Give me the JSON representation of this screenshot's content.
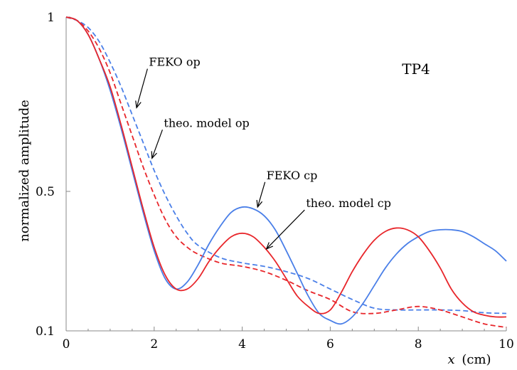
{
  "chart_data": {
    "type": "line",
    "title": "TP4",
    "xlabel_var": "x",
    "xlabel_unit": "(cm)",
    "ylabel": "normalized amplitude",
    "xlim": [
      0,
      10
    ],
    "ylim": [
      0.1,
      1
    ],
    "x_ticks": [
      0,
      2,
      4,
      6,
      8,
      10
    ],
    "x_tick_labels": [
      "0",
      "2",
      "4",
      "6",
      "8",
      "10"
    ],
    "y_ticks": [
      0.1,
      0.5,
      1
    ],
    "y_tick_labels": [
      "0.1",
      "0.5",
      "1"
    ],
    "grid": false,
    "series": [
      {
        "name": "FEKO op",
        "color": "#4a7fe8",
        "dash": "dashed",
        "x": [
          0,
          0.25,
          0.5,
          0.75,
          1,
          1.25,
          1.5,
          1.75,
          2,
          2.25,
          2.5,
          2.75,
          3,
          3.5,
          4,
          4.5,
          5,
          5.5,
          6,
          6.5,
          7,
          7.5,
          8,
          8.5,
          9,
          9.5,
          10
        ],
        "y": [
          1.0,
          0.99,
          0.97,
          0.93,
          0.87,
          0.8,
          0.72,
          0.64,
          0.56,
          0.49,
          0.43,
          0.38,
          0.345,
          0.31,
          0.295,
          0.285,
          0.27,
          0.25,
          0.22,
          0.19,
          0.165,
          0.16,
          0.16,
          0.16,
          0.158,
          0.152,
          0.15
        ]
      },
      {
        "name": "theo. model op",
        "color": "#e8262b",
        "dash": "dashed",
        "x": [
          0,
          0.25,
          0.5,
          0.75,
          1,
          1.25,
          1.5,
          1.75,
          2,
          2.25,
          2.5,
          2.75,
          3,
          3.5,
          4,
          4.5,
          5,
          5.5,
          6,
          6.5,
          7,
          7.5,
          8,
          8.5,
          9,
          9.5,
          10
        ],
        "y": [
          1.0,
          0.99,
          0.96,
          0.91,
          0.84,
          0.75,
          0.66,
          0.57,
          0.49,
          0.42,
          0.37,
          0.34,
          0.32,
          0.295,
          0.285,
          0.27,
          0.245,
          0.215,
          0.19,
          0.155,
          0.15,
          0.16,
          0.17,
          0.16,
          0.14,
          0.12,
          0.11
        ]
      },
      {
        "name": "FEKO cp",
        "color": "#4a7fe8",
        "dash": "solid",
        "x": [
          0,
          0.25,
          0.5,
          0.75,
          1,
          1.25,
          1.5,
          1.75,
          2,
          2.25,
          2.5,
          2.75,
          3,
          3.25,
          3.5,
          3.75,
          4,
          4.25,
          4.5,
          4.75,
          5,
          5.25,
          5.5,
          5.75,
          6,
          6.25,
          6.5,
          6.75,
          7,
          7.25,
          7.5,
          7.75,
          8,
          8.25,
          8.5,
          8.75,
          9,
          9.25,
          9.5,
          9.75,
          10
        ],
        "y": [
          1.0,
          0.99,
          0.95,
          0.88,
          0.79,
          0.68,
          0.56,
          0.44,
          0.33,
          0.25,
          0.22,
          0.24,
          0.29,
          0.35,
          0.4,
          0.44,
          0.455,
          0.45,
          0.43,
          0.39,
          0.33,
          0.265,
          0.2,
          0.15,
          0.13,
          0.12,
          0.14,
          0.18,
          0.23,
          0.28,
          0.32,
          0.35,
          0.37,
          0.385,
          0.39,
          0.39,
          0.385,
          0.37,
          0.35,
          0.33,
          0.3
        ]
      },
      {
        "name": "theo. model cp",
        "color": "#e8262b",
        "dash": "solid",
        "x": [
          0,
          0.25,
          0.5,
          0.75,
          1,
          1.25,
          1.5,
          1.75,
          2,
          2.25,
          2.5,
          2.75,
          3,
          3.25,
          3.5,
          3.75,
          4,
          4.25,
          4.5,
          4.75,
          5,
          5.25,
          5.5,
          5.75,
          6,
          6.25,
          6.5,
          6.75,
          7,
          7.25,
          7.5,
          7.75,
          8,
          8.25,
          8.5,
          8.75,
          9,
          9.25,
          9.5,
          9.75,
          10
        ],
        "y": [
          1.0,
          0.99,
          0.95,
          0.88,
          0.8,
          0.69,
          0.57,
          0.45,
          0.34,
          0.26,
          0.22,
          0.22,
          0.25,
          0.3,
          0.34,
          0.37,
          0.38,
          0.37,
          0.34,
          0.3,
          0.25,
          0.2,
          0.17,
          0.15,
          0.16,
          0.21,
          0.27,
          0.32,
          0.36,
          0.385,
          0.395,
          0.39,
          0.37,
          0.33,
          0.28,
          0.22,
          0.18,
          0.155,
          0.145,
          0.14,
          0.14
        ]
      }
    ],
    "annotations": [
      {
        "text": "FEKO op",
        "series_index": 0,
        "text_x": 1.88,
        "text_y": 0.86,
        "arrow_x": 1.6,
        "arrow_y": 0.74
      },
      {
        "text": "theo. model op",
        "series_index": 1,
        "text_x": 2.22,
        "text_y": 0.685,
        "arrow_x": 1.95,
        "arrow_y": 0.595
      },
      {
        "text": "FEKO cp",
        "series_index": 2,
        "text_x": 4.55,
        "text_y": 0.535,
        "arrow_x": 4.35,
        "arrow_y": 0.455
      },
      {
        "text": "theo. model cp",
        "series_index": 3,
        "text_x": 5.45,
        "text_y": 0.455,
        "arrow_x": 4.55,
        "arrow_y": 0.335
      }
    ]
  }
}
